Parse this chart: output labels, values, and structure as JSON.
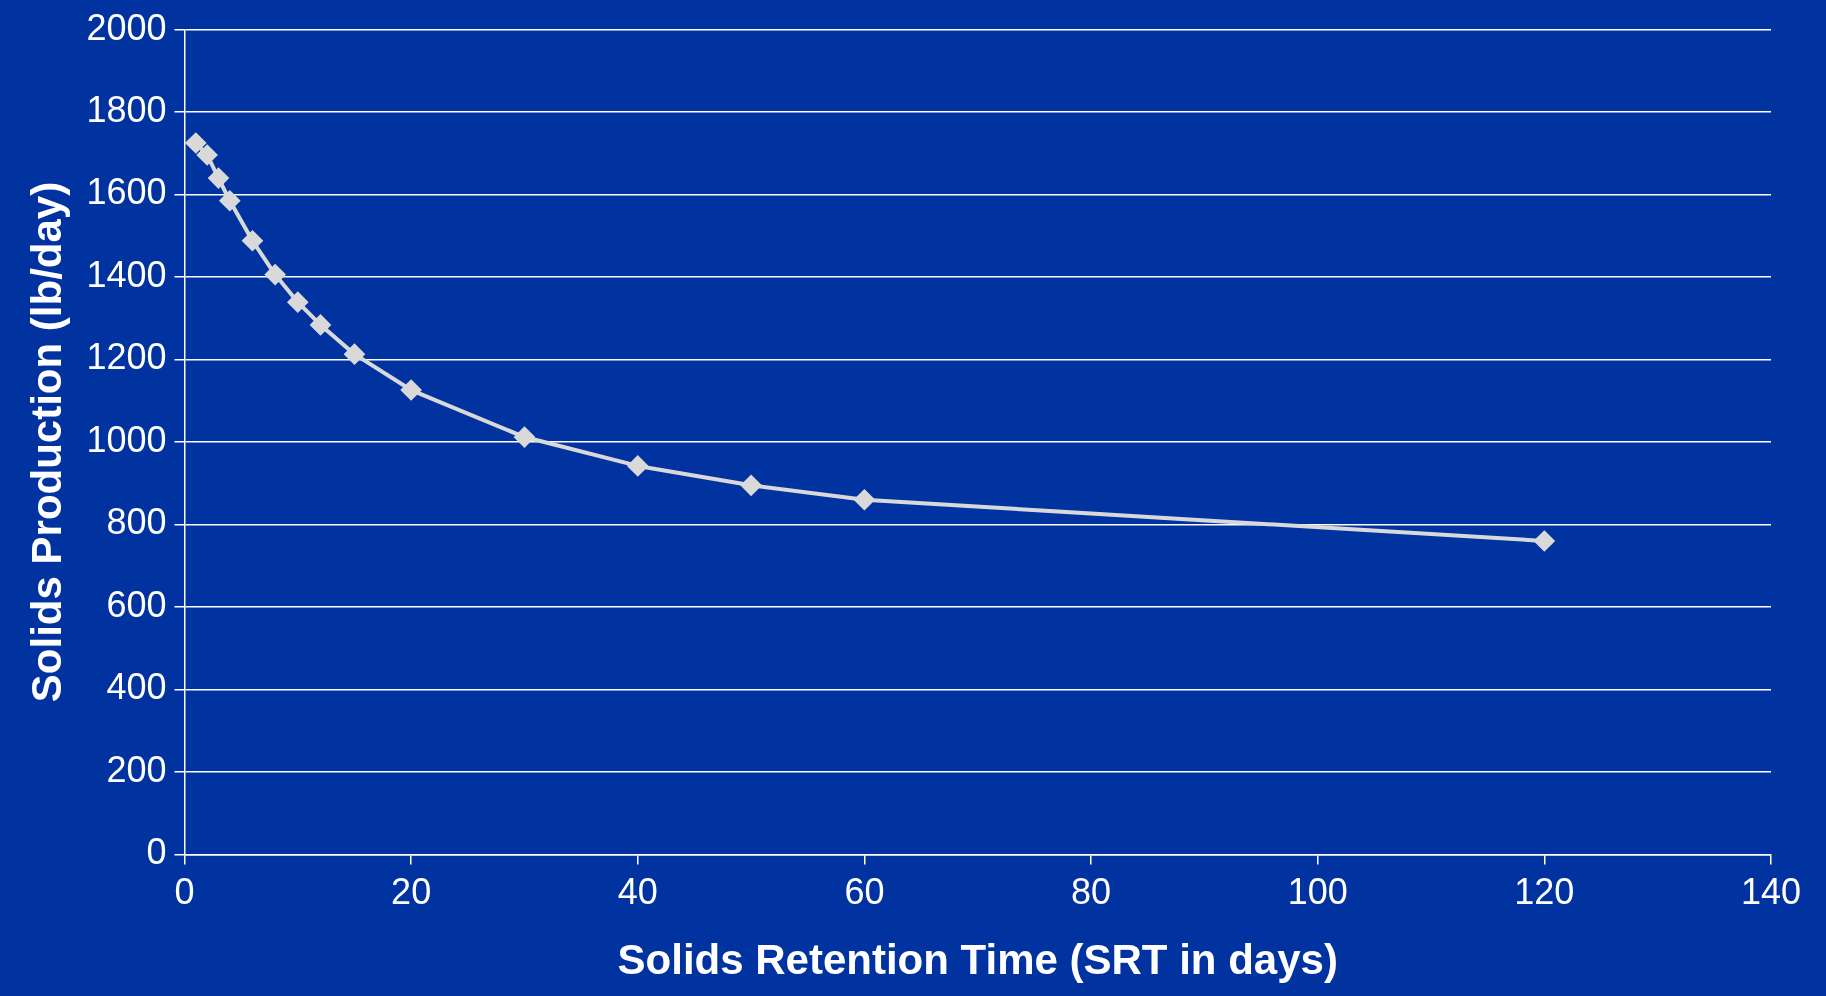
{
  "chart_data": {
    "type": "line",
    "xlabel": "Solids Retention Time (SRT in days)",
    "ylabel": "Solids Production (lb/day)",
    "x": [
      1,
      2,
      3,
      4,
      6,
      8,
      10,
      12,
      15,
      20,
      30,
      40,
      50,
      60,
      120
    ],
    "series": [
      {
        "color": "#d9d9d9",
        "values": [
          1725,
          1696,
          1640,
          1585,
          1488,
          1406,
          1339,
          1284,
          1213,
          1126,
          1012,
          942,
          895,
          860,
          760
        ]
      }
    ],
    "xlim": [
      0,
      140
    ],
    "xticks": [
      0,
      20,
      40,
      60,
      80,
      100,
      120,
      140
    ],
    "ylim": [
      0,
      2000
    ],
    "yticks": [
      0,
      200,
      400,
      600,
      800,
      1000,
      1200,
      1400,
      1600,
      1800,
      2000
    ],
    "grid": "y",
    "legend": false,
    "marker": "diamond",
    "line_style": "solid"
  }
}
